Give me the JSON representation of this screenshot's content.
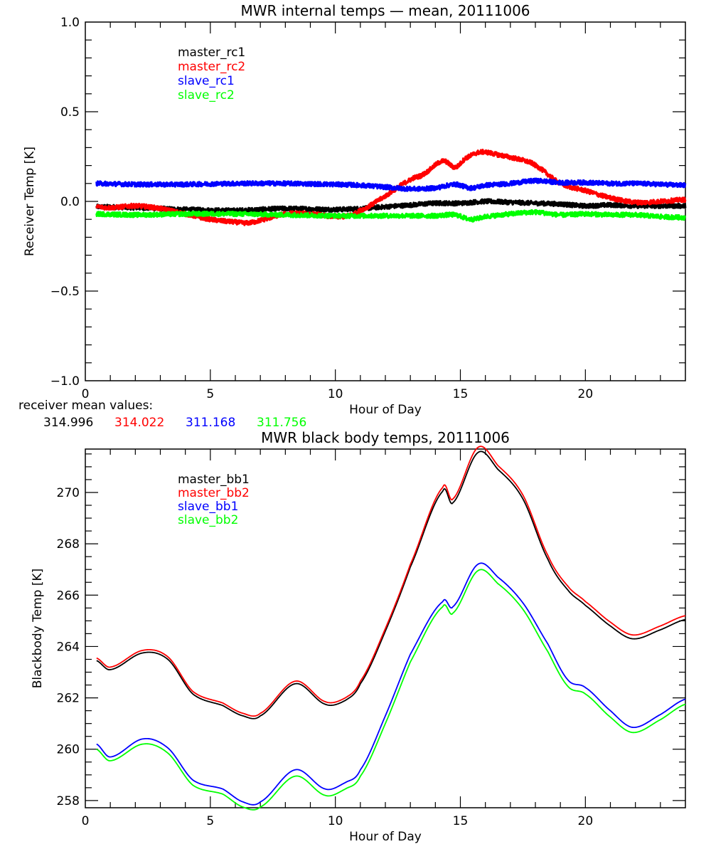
{
  "chart_data": [
    {
      "type": "line",
      "title": "MWR internal temps — mean, 20111006",
      "xlabel": "Hour of Day",
      "ylabel": "Receiver Temp [K]",
      "xlim": [
        0,
        24
      ],
      "ylim": [
        -1.0,
        1.0
      ],
      "x_ticks": [
        0,
        5,
        10,
        15,
        20
      ],
      "x_minor_step": 1,
      "y_ticks": [
        -1.0,
        -0.5,
        0.0,
        0.5,
        1.0
      ],
      "y_tick_labels": [
        "−1.0",
        "−0.5",
        "0.0",
        "0.5",
        "1.0"
      ],
      "y_minor_step": 0.1,
      "grid": false,
      "legend_position": "top-left-inside",
      "noise_amplitude": 0.012,
      "series": [
        {
          "name": "master_rc1",
          "color": "#000000",
          "x": [
            0.45,
            2,
            4,
            6,
            8,
            10,
            11,
            12,
            13,
            14,
            15,
            16,
            17,
            18,
            19,
            20,
            21,
            22,
            23,
            24
          ],
          "y": [
            -0.03,
            -0.035,
            -0.045,
            -0.05,
            -0.04,
            -0.045,
            -0.04,
            -0.03,
            -0.02,
            -0.01,
            -0.01,
            0.0,
            -0.005,
            -0.01,
            -0.015,
            -0.025,
            -0.02,
            -0.025,
            -0.025,
            -0.025
          ]
        },
        {
          "name": "master_rc2",
          "color": "#ff0000",
          "x": [
            0.45,
            1,
            2,
            3,
            4,
            5,
            6,
            6.5,
            7,
            8,
            9,
            10,
            10.5,
            11,
            12,
            13,
            13.5,
            14.3,
            14.8,
            15.2,
            15.8,
            16.5,
            17.5,
            18,
            19,
            20,
            21,
            22,
            23,
            24
          ],
          "y": [
            -0.03,
            -0.035,
            -0.025,
            -0.04,
            -0.07,
            -0.1,
            -0.115,
            -0.12,
            -0.105,
            -0.07,
            -0.07,
            -0.085,
            -0.08,
            -0.05,
            0.03,
            0.12,
            0.15,
            0.225,
            0.19,
            0.24,
            0.275,
            0.26,
            0.23,
            0.2,
            0.1,
            0.06,
            0.02,
            -0.005,
            0.0,
            0.01
          ]
        },
        {
          "name": "slave_rc1",
          "color": "#0000ff",
          "x": [
            0.45,
            2,
            4,
            6,
            8,
            10,
            11,
            12,
            13,
            14,
            14.8,
            15.4,
            16,
            17,
            18,
            19,
            20,
            21,
            22,
            23,
            24
          ],
          "y": [
            0.1,
            0.095,
            0.095,
            0.1,
            0.1,
            0.095,
            0.09,
            0.08,
            0.07,
            0.075,
            0.095,
            0.075,
            0.09,
            0.1,
            0.115,
            0.105,
            0.105,
            0.1,
            0.1,
            0.095,
            0.09
          ]
        },
        {
          "name": "slave_rc2",
          "color": "#00ff00",
          "x": [
            0.45,
            2,
            4,
            6,
            8,
            10,
            12,
            14,
            14.8,
            15.4,
            16,
            17,
            18,
            19,
            20,
            21,
            22,
            23,
            24
          ],
          "y": [
            -0.07,
            -0.075,
            -0.07,
            -0.07,
            -0.075,
            -0.08,
            -0.08,
            -0.08,
            -0.075,
            -0.1,
            -0.085,
            -0.07,
            -0.06,
            -0.075,
            -0.07,
            -0.075,
            -0.075,
            -0.085,
            -0.09
          ]
        }
      ],
      "annotation": {
        "label": "receiver mean values:",
        "values": [
          {
            "text": "314.996",
            "color": "#000000"
          },
          {
            "text": "314.022",
            "color": "#ff0000"
          },
          {
            "text": "311.168",
            "color": "#0000ff"
          },
          {
            "text": "311.756",
            "color": "#00ff00"
          }
        ]
      }
    },
    {
      "type": "line",
      "title": "MWR black body temps, 20111006",
      "xlabel": "Hour of Day",
      "ylabel": "Blackbody Temp [K]",
      "xlim": [
        0,
        24
      ],
      "ylim": [
        257.72,
        271.69
      ],
      "x_ticks": [
        0,
        5,
        10,
        15,
        20
      ],
      "x_minor_step": 1,
      "y_ticks": [
        258,
        260,
        262,
        264,
        266,
        268,
        270
      ],
      "y_tick_labels": [
        "258",
        "260",
        "262",
        "264",
        "266",
        "268",
        "270"
      ],
      "y_minor_step": 0.5,
      "grid": false,
      "legend_position": "top-left-inside",
      "series": [
        {
          "name": "master_bb1",
          "color": "#000000",
          "x": [
            0.45,
            1.0,
            2.3,
            3.3,
            4.3,
            5.5,
            6.3,
            7.0,
            8.4,
            9.6,
            10.4,
            11.0,
            12.0,
            13.0,
            14.3,
            14.7,
            15.7,
            16.5,
            17.5,
            18.5,
            19.3,
            20.0,
            21.0,
            21.9,
            23.0,
            24.0
          ],
          "y": [
            263.45,
            263.1,
            263.75,
            263.5,
            262.15,
            261.7,
            261.3,
            261.3,
            262.55,
            261.75,
            261.9,
            262.55,
            264.6,
            267.1,
            270.05,
            269.6,
            271.55,
            270.9,
            269.75,
            267.4,
            266.2,
            265.6,
            264.8,
            264.3,
            264.65,
            265.05
          ]
        },
        {
          "name": "master_bb2",
          "color": "#ff0000",
          "x": [
            0.45,
            1.0,
            2.3,
            3.3,
            4.3,
            5.5,
            6.3,
            7.0,
            8.4,
            9.6,
            10.4,
            11.0,
            12.0,
            13.0,
            14.3,
            14.7,
            15.7,
            16.5,
            17.5,
            18.5,
            19.3,
            20.0,
            21.0,
            21.9,
            23.0,
            24.0
          ],
          "y": [
            263.55,
            263.2,
            263.85,
            263.6,
            262.25,
            261.8,
            261.4,
            261.4,
            262.65,
            261.85,
            262.0,
            262.65,
            264.7,
            267.2,
            270.2,
            269.75,
            271.75,
            271.05,
            269.9,
            267.55,
            266.35,
            265.75,
            264.95,
            264.45,
            264.8,
            265.2
          ]
        },
        {
          "name": "slave_bb1",
          "color": "#0000ff",
          "x": [
            0.45,
            1.0,
            2.3,
            3.3,
            4.3,
            5.5,
            6.3,
            7.0,
            8.4,
            9.6,
            10.4,
            11.0,
            12.0,
            13.0,
            14.3,
            14.7,
            15.7,
            16.5,
            17.5,
            18.5,
            19.3,
            20.0,
            21.0,
            21.9,
            23.0,
            24.0
          ],
          "y": [
            260.2,
            259.7,
            260.4,
            260.05,
            258.8,
            258.45,
            257.95,
            257.95,
            259.2,
            258.45,
            258.7,
            259.2,
            261.3,
            263.7,
            265.75,
            265.55,
            267.2,
            266.7,
            265.7,
            264.1,
            262.7,
            262.4,
            261.5,
            260.85,
            261.35,
            261.95
          ]
        },
        {
          "name": "slave_bb2",
          "color": "#00ff00",
          "x": [
            0.45,
            1.0,
            2.3,
            3.3,
            4.3,
            5.5,
            6.3,
            7.0,
            8.4,
            9.6,
            10.4,
            11.0,
            12.0,
            13.0,
            14.3,
            14.7,
            15.7,
            16.5,
            17.5,
            18.5,
            19.3,
            20.0,
            21.0,
            21.9,
            23.0,
            24.0
          ],
          "y": [
            260.0,
            259.55,
            260.2,
            259.85,
            258.6,
            258.25,
            257.75,
            257.75,
            258.95,
            258.2,
            258.45,
            258.95,
            261.0,
            263.4,
            265.55,
            265.3,
            266.95,
            266.45,
            265.45,
            263.8,
            262.45,
            262.15,
            261.25,
            260.65,
            261.15,
            261.75
          ]
        }
      ]
    }
  ]
}
